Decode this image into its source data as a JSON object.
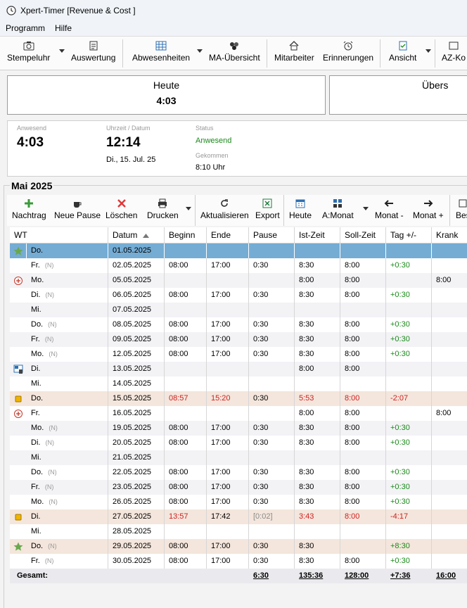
{
  "window": {
    "title": "Xpert-Timer [Revenue & Cost ]"
  },
  "menu": {
    "items": [
      "Programm",
      "Hilfe"
    ]
  },
  "toolbar": {
    "stempeluhr": "Stempeluhr",
    "auswertung": "Auswertung",
    "abwesenheiten": "Abwesenheiten",
    "ma_uebersicht": "MA-Übersicht",
    "mitarbeiter": "Mitarbeiter",
    "erinnerungen": "Erinnerungen",
    "ansicht": "Ansicht",
    "az_konto": "AZ-Ko"
  },
  "today": {
    "label": "Heute",
    "value": "4:03"
  },
  "overview": {
    "label": "Übers"
  },
  "status": {
    "anwesend_label": "Anwesend",
    "anwesend_value": "4:03",
    "time_label": "Uhrzeit / Datum",
    "time_value": "12:14",
    "date_value": "Di., 15. Jul. 25",
    "status_label": "Status",
    "status_value": "Anwesend",
    "gekommen_label": "Gekommen",
    "gekommen_value": "8:10 Uhr"
  },
  "month": {
    "title": "Mai 2025"
  },
  "toolbar2": {
    "nachtrag": "Nachtrag",
    "neue_pause": "Neue Pause",
    "loeschen": "Löschen",
    "drucken": "Drucken",
    "aktualisieren": "Aktualisieren",
    "export": "Export",
    "heute": "Heute",
    "a_monat": "A:Monat",
    "monat_minus": "Monat -",
    "monat_plus": "Monat +",
    "bes": "Bes"
  },
  "colors": {
    "accent": "#74acd4",
    "highlight": "#f4e6dc",
    "positive": "#1a8a1a",
    "negative": "#d02020"
  },
  "table": {
    "headers": {
      "wt": "WT",
      "datum": "Datum",
      "beginn": "Beginn",
      "ende": "Ende",
      "pause": "Pause",
      "ist": "Ist-Zeit",
      "soll": "Soll-Zeit",
      "tag": "Tag +/-",
      "krank": "Krank"
    },
    "rows": [
      {
        "icon": "star-icon",
        "wt": "Do.",
        "n": "",
        "datum": "01.05.2025",
        "beginn": "",
        "ende": "",
        "pause": "",
        "ist": "",
        "soll": "",
        "tag": "",
        "krank": ""
      },
      {
        "icon": "",
        "wt": "Fr.",
        "n": "(N)",
        "datum": "02.05.2025",
        "beginn": "08:00",
        "ende": "17:00",
        "pause": "0:30",
        "ist": "8:30",
        "soll": "8:00",
        "tag": "+0:30",
        "krank": ""
      },
      {
        "icon": "sick-icon",
        "wt": "Mo.",
        "n": "",
        "datum": "05.05.2025",
        "beginn": "",
        "ende": "",
        "pause": "",
        "ist": "8:00",
        "soll": "8:00",
        "tag": "",
        "krank": "8:00"
      },
      {
        "icon": "",
        "wt": "Di.",
        "n": "(N)",
        "datum": "06.05.2025",
        "beginn": "08:00",
        "ende": "17:00",
        "pause": "0:30",
        "ist": "8:30",
        "soll": "8:00",
        "tag": "+0:30",
        "krank": ""
      },
      {
        "icon": "",
        "wt": "Mi.",
        "n": "",
        "datum": "07.05.2025",
        "beginn": "",
        "ende": "",
        "pause": "",
        "ist": "",
        "soll": "",
        "tag": "",
        "krank": ""
      },
      {
        "icon": "",
        "wt": "Do.",
        "n": "(N)",
        "datum": "08.05.2025",
        "beginn": "08:00",
        "ende": "17:00",
        "pause": "0:30",
        "ist": "8:30",
        "soll": "8:00",
        "tag": "+0:30",
        "krank": ""
      },
      {
        "icon": "",
        "wt": "Fr.",
        "n": "(N)",
        "datum": "09.05.2025",
        "beginn": "08:00",
        "ende": "17:00",
        "pause": "0:30",
        "ist": "8:30",
        "soll": "8:00",
        "tag": "+0:30",
        "krank": ""
      },
      {
        "icon": "",
        "wt": "Mo.",
        "n": "(N)",
        "datum": "12.05.2025",
        "beginn": "08:00",
        "ende": "17:00",
        "pause": "0:30",
        "ist": "8:30",
        "soll": "8:00",
        "tag": "+0:30",
        "krank": ""
      },
      {
        "icon": "training-icon",
        "wt": "Di.",
        "n": "",
        "datum": "13.05.2025",
        "beginn": "",
        "ende": "",
        "pause": "",
        "ist": "8:00",
        "soll": "8:00",
        "tag": "",
        "krank": ""
      },
      {
        "icon": "",
        "wt": "Mi.",
        "n": "",
        "datum": "14.05.2025",
        "beginn": "",
        "ende": "",
        "pause": "",
        "ist": "",
        "soll": "",
        "tag": "",
        "krank": ""
      },
      {
        "icon": "warning-icon",
        "wt": "Do.",
        "n": "",
        "datum": "15.05.2025",
        "beginn": "08:57",
        "ende": "15:20",
        "pause": "0:30",
        "ist": "5:53",
        "soll": "8:00",
        "tag": "-2:07",
        "krank": ""
      },
      {
        "icon": "sick-icon",
        "wt": "Fr.",
        "n": "",
        "datum": "16.05.2025",
        "beginn": "",
        "ende": "",
        "pause": "",
        "ist": "8:00",
        "soll": "8:00",
        "tag": "",
        "krank": "8:00"
      },
      {
        "icon": "",
        "wt": "Mo.",
        "n": "(N)",
        "datum": "19.05.2025",
        "beginn": "08:00",
        "ende": "17:00",
        "pause": "0:30",
        "ist": "8:30",
        "soll": "8:00",
        "tag": "+0:30",
        "krank": ""
      },
      {
        "icon": "",
        "wt": "Di.",
        "n": "(N)",
        "datum": "20.05.2025",
        "beginn": "08:00",
        "ende": "17:00",
        "pause": "0:30",
        "ist": "8:30",
        "soll": "8:00",
        "tag": "+0:30",
        "krank": ""
      },
      {
        "icon": "",
        "wt": "Mi.",
        "n": "",
        "datum": "21.05.2025",
        "beginn": "",
        "ende": "",
        "pause": "",
        "ist": "",
        "soll": "",
        "tag": "",
        "krank": ""
      },
      {
        "icon": "",
        "wt": "Do.",
        "n": "(N)",
        "datum": "22.05.2025",
        "beginn": "08:00",
        "ende": "17:00",
        "pause": "0:30",
        "ist": "8:30",
        "soll": "8:00",
        "tag": "+0:30",
        "krank": ""
      },
      {
        "icon": "",
        "wt": "Fr.",
        "n": "(N)",
        "datum": "23.05.2025",
        "beginn": "08:00",
        "ende": "17:00",
        "pause": "0:30",
        "ist": "8:30",
        "soll": "8:00",
        "tag": "+0:30",
        "krank": ""
      },
      {
        "icon": "",
        "wt": "Mo.",
        "n": "(N)",
        "datum": "26.05.2025",
        "beginn": "08:00",
        "ende": "17:00",
        "pause": "0:30",
        "ist": "8:30",
        "soll": "8:00",
        "tag": "+0:30",
        "krank": ""
      },
      {
        "icon": "warning-icon",
        "wt": "Di.",
        "n": "",
        "datum": "27.05.2025",
        "beginn": "13:57",
        "ende": "17:42",
        "pause": "[0:02]",
        "ist": "3:43",
        "soll": "8:00",
        "tag": "-4:17",
        "krank": ""
      },
      {
        "icon": "",
        "wt": "Mi.",
        "n": "",
        "datum": "28.05.2025",
        "beginn": "",
        "ende": "",
        "pause": "",
        "ist": "",
        "soll": "",
        "tag": "",
        "krank": ""
      },
      {
        "icon": "star-icon",
        "wt": "Do.",
        "n": "(N)",
        "datum": "29.05.2025",
        "beginn": "08:00",
        "ende": "17:00",
        "pause": "0:30",
        "ist": "8:30",
        "soll": "",
        "tag": "+8:30",
        "krank": ""
      },
      {
        "icon": "",
        "wt": "Fr.",
        "n": "(N)",
        "datum": "30.05.2025",
        "beginn": "08:00",
        "ende": "17:00",
        "pause": "0:30",
        "ist": "8:30",
        "soll": "8:00",
        "tag": "+0:30",
        "krank": ""
      }
    ],
    "total": {
      "label": "Gesamt:",
      "pause": "6:30",
      "ist": "135:36",
      "soll": "128:00",
      "tag": "+7:36",
      "krank": "16:00"
    }
  }
}
